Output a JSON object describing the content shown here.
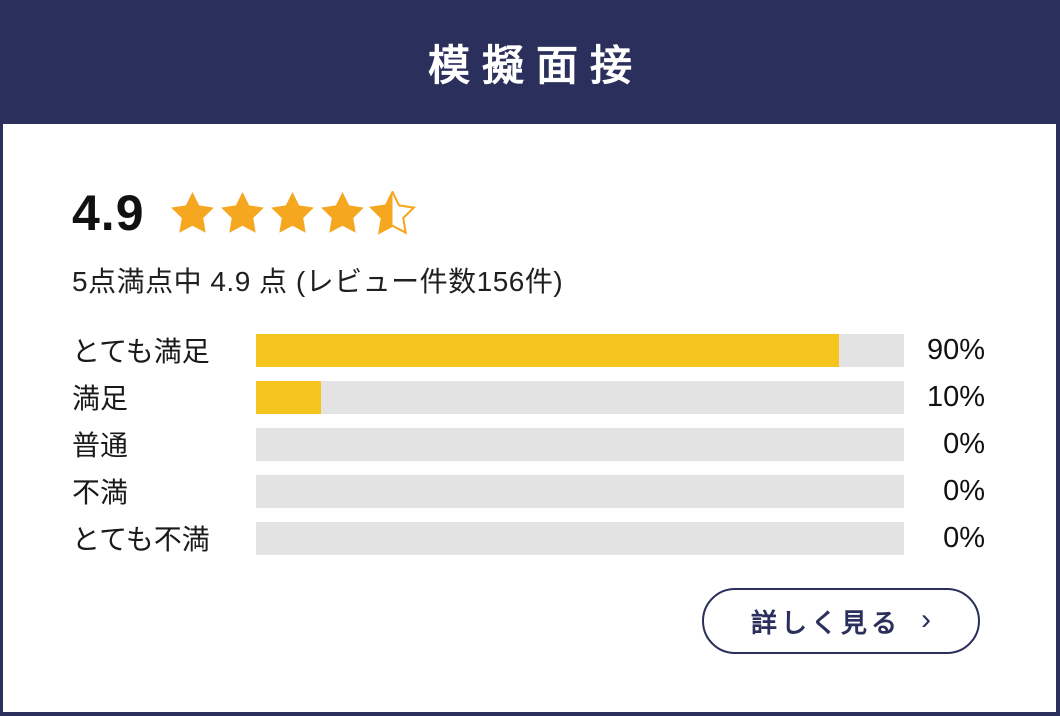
{
  "colors": {
    "navy": "#2a2f5c",
    "star_orange": "#f5a71f",
    "bar_yellow": "#f5c51d",
    "track_gray": "#e3e3e3"
  },
  "header": {
    "title": "模擬面接"
  },
  "rating": {
    "score": "4.9",
    "max_score": 5,
    "review_count": 156,
    "stars": [
      1,
      1,
      1,
      1,
      0.5
    ],
    "summary": "5点満点中 4.9 点 (レビュー件数156件)"
  },
  "bars": [
    {
      "label": "とても満足",
      "percent": 90,
      "display": "90%"
    },
    {
      "label": "満足",
      "percent": 10,
      "display": "10%"
    },
    {
      "label": "普通",
      "percent": 0,
      "display": "0%"
    },
    {
      "label": "不満",
      "percent": 0,
      "display": "0%"
    },
    {
      "label": "とても不満",
      "percent": 0,
      "display": "0%"
    }
  ],
  "button": {
    "label": "詳しく見る",
    "chevron": "›"
  },
  "chart_data": {
    "type": "bar",
    "orientation": "horizontal",
    "title": "模擬面接",
    "categories": [
      "とても満足",
      "満足",
      "普通",
      "不満",
      "とても不満"
    ],
    "values": [
      90,
      10,
      0,
      0,
      0
    ],
    "value_unit": "%",
    "xlim": [
      0,
      100
    ],
    "annotation": "5点満点中 4.9 点 (レビュー件数156件)"
  }
}
